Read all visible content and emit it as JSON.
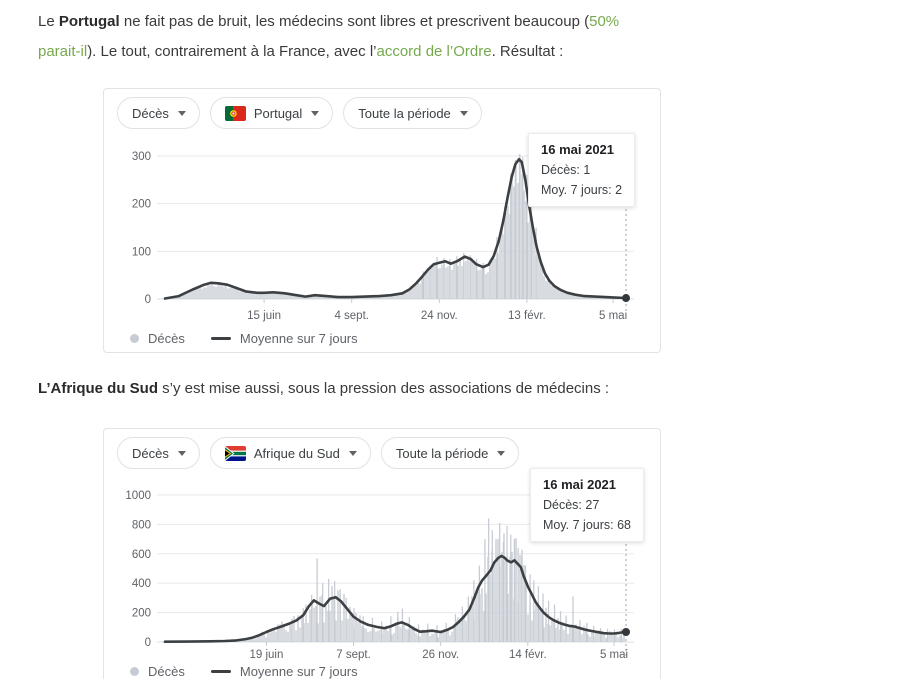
{
  "page": {
    "colors": {
      "link_green": "#76a94e",
      "bar_fill": "#c7ccd4",
      "avg_line": "#3c4043",
      "axis_text": "#5f6368",
      "text": "#3a3a3a"
    },
    "paragraphs": [
      {
        "segments": [
          {
            "t": "Le ",
            "s": "n"
          },
          {
            "t": "Portugal",
            "s": "b"
          },
          {
            "t": " ne fait pas de bruit, les médecins sont libres et prescrivent beaucoup (",
            "s": "n"
          },
          {
            "t": "50%",
            "s": "l"
          },
          {
            "br": true
          },
          {
            "t": "parait-il",
            "s": "l"
          },
          {
            "t": "). Le tout, contrairement à la France, avec l’",
            "s": "n"
          },
          {
            "t": "accord de l’Ordre",
            "s": "l"
          },
          {
            "t": ". Résultat :",
            "s": "n"
          }
        ]
      },
      {
        "segments": [
          {
            "t": "L’Afrique du Sud",
            "s": "b"
          },
          {
            "t": " s’y est mise aussi, sous la pression des associations de médecins :",
            "s": "n"
          }
        ]
      }
    ]
  },
  "chart_data": [
    {
      "type": "area",
      "title": "Décès – Portugal – Toute la période",
      "metric": "Décès",
      "country": "Portugal",
      "period": "Toute la période",
      "controls": [
        {
          "label": "Décès",
          "flag": null,
          "name": "metric-dropdown"
        },
        {
          "label": "Portugal",
          "flag": "portugal-flag",
          "name": "country-dropdown"
        },
        {
          "label": "Toute la période",
          "flag": null,
          "name": "period-dropdown"
        }
      ],
      "ylim": [
        0,
        315
      ],
      "y_ticks": [
        0,
        100,
        200,
        300
      ],
      "x_ticks": [
        {
          "t": 0.215,
          "label": "15 juin"
        },
        {
          "t": 0.405,
          "label": "4 sept."
        },
        {
          "t": 0.595,
          "label": "24 nov."
        },
        {
          "t": 0.785,
          "label": "13 févr."
        },
        {
          "t": 0.972,
          "label": "5 mai"
        }
      ],
      "tooltip": {
        "title": "16 mai 2021",
        "rows": [
          "Décès: 1",
          "Moy. 7 jours: 2"
        ]
      },
      "end_point": {
        "date": "16 mai 2021",
        "value": 2
      },
      "legend": [
        {
          "type": "dot",
          "label": "Décès"
        },
        {
          "type": "line",
          "label": "Moyenne sur 7 jours"
        }
      ],
      "series": [
        {
          "name": "Décès",
          "style": "bars-daily-with-jitter"
        },
        {
          "name": "Moyenne sur 7 jours",
          "style": "line",
          "points": [
            [
              0,
              1
            ],
            [
              0.03,
              6
            ],
            [
              0.06,
              20
            ],
            [
              0.085,
              30
            ],
            [
              0.1,
              34
            ],
            [
              0.115,
              33
            ],
            [
              0.135,
              30
            ],
            [
              0.155,
              23
            ],
            [
              0.175,
              16
            ],
            [
              0.2,
              13
            ],
            [
              0.215,
              13
            ],
            [
              0.235,
              14
            ],
            [
              0.26,
              12
            ],
            [
              0.285,
              8
            ],
            [
              0.305,
              5
            ],
            [
              0.325,
              8
            ],
            [
              0.35,
              6
            ],
            [
              0.375,
              4
            ],
            [
              0.405,
              4
            ],
            [
              0.435,
              5
            ],
            [
              0.465,
              6
            ],
            [
              0.49,
              8
            ],
            [
              0.515,
              12
            ],
            [
              0.53,
              20
            ],
            [
              0.545,
              33
            ],
            [
              0.558,
              47
            ],
            [
              0.571,
              62
            ],
            [
              0.583,
              73
            ],
            [
              0.595,
              76
            ],
            [
              0.608,
              79
            ],
            [
              0.62,
              74
            ],
            [
              0.635,
              80
            ],
            [
              0.65,
              89
            ],
            [
              0.663,
              84
            ],
            [
              0.675,
              73
            ],
            [
              0.69,
              67
            ],
            [
              0.702,
              72
            ],
            [
              0.713,
              90
            ],
            [
              0.724,
              122
            ],
            [
              0.734,
              165
            ],
            [
              0.743,
              212
            ],
            [
              0.752,
              256
            ],
            [
              0.76,
              283
            ],
            [
              0.768,
              293
            ],
            [
              0.774,
              287
            ],
            [
              0.782,
              248
            ],
            [
              0.79,
              195
            ],
            [
              0.798,
              150
            ],
            [
              0.806,
              110
            ],
            [
              0.815,
              78
            ],
            [
              0.824,
              54
            ],
            [
              0.834,
              38
            ],
            [
              0.845,
              27
            ],
            [
              0.858,
              19
            ],
            [
              0.873,
              13
            ],
            [
              0.89,
              9
            ],
            [
              0.91,
              6
            ],
            [
              0.932,
              5
            ],
            [
              0.955,
              4
            ],
            [
              0.976,
              3
            ],
            [
              1,
              2
            ]
          ]
        }
      ],
      "notable_daily_spikes": [
        [
          0.56,
          58
        ],
        [
          0.575,
          70
        ],
        [
          0.59,
          88
        ],
        [
          0.605,
          86
        ],
        [
          0.618,
          84
        ],
        [
          0.633,
          90
        ],
        [
          0.648,
          97
        ],
        [
          0.662,
          92
        ],
        [
          0.676,
          84
        ],
        [
          0.69,
          76
        ],
        [
          0.705,
          82
        ],
        [
          0.72,
          130
        ],
        [
          0.737,
          195
        ],
        [
          0.75,
          262
        ],
        [
          0.76,
          292
        ],
        [
          0.769,
          304
        ],
        [
          0.776,
          298
        ],
        [
          0.785,
          260
        ],
        [
          0.795,
          205
        ],
        [
          0.805,
          150
        ]
      ]
    },
    {
      "type": "area",
      "title": "Décès – Afrique du Sud – Toute la période",
      "metric": "Décès",
      "country": "Afrique du Sud",
      "period": "Toute la période",
      "controls": [
        {
          "label": "Décès",
          "flag": null,
          "name": "metric-dropdown"
        },
        {
          "label": "Afrique du Sud",
          "flag": "south-africa-flag",
          "name": "country-dropdown"
        },
        {
          "label": "Toute la période",
          "flag": null,
          "name": "period-dropdown"
        }
      ],
      "ylim": [
        0,
        1050
      ],
      "y_ticks": [
        0,
        200,
        400,
        600,
        800,
        1000
      ],
      "x_ticks": [
        {
          "t": 0.22,
          "label": "19 juin"
        },
        {
          "t": 0.409,
          "label": "7 sept."
        },
        {
          "t": 0.598,
          "label": "26 nov."
        },
        {
          "t": 0.787,
          "label": "14 févr."
        },
        {
          "t": 0.974,
          "label": "5 mai"
        }
      ],
      "tooltip": {
        "title": "16 mai 2021",
        "rows": [
          "Décès: 27",
          "Moy. 7 jours: 68"
        ]
      },
      "end_point": {
        "date": "16 mai 2021",
        "value": 68
      },
      "legend": [
        {
          "type": "dot",
          "label": "Décès"
        },
        {
          "type": "line",
          "label": "Moyenne sur 7 jours"
        }
      ],
      "series": [
        {
          "name": "Décès",
          "style": "bars-daily-with-jitter"
        },
        {
          "name": "Moyenne sur 7 jours",
          "style": "line",
          "points": [
            [
              0,
              2
            ],
            [
              0.05,
              3
            ],
            [
              0.1,
              5
            ],
            [
              0.13,
              7
            ],
            [
              0.155,
              11
            ],
            [
              0.175,
              20
            ],
            [
              0.19,
              30
            ],
            [
              0.205,
              47
            ],
            [
              0.22,
              68
            ],
            [
              0.235,
              87
            ],
            [
              0.25,
              103
            ],
            [
              0.27,
              126
            ],
            [
              0.285,
              147
            ],
            [
              0.3,
              182
            ],
            [
              0.312,
              243
            ],
            [
              0.323,
              283
            ],
            [
              0.334,
              262
            ],
            [
              0.345,
              244
            ],
            [
              0.358,
              294
            ],
            [
              0.37,
              305
            ],
            [
              0.382,
              276
            ],
            [
              0.395,
              226
            ],
            [
              0.409,
              172
            ],
            [
              0.424,
              140
            ],
            [
              0.441,
              116
            ],
            [
              0.459,
              103
            ],
            [
              0.476,
              94
            ],
            [
              0.491,
              108
            ],
            [
              0.504,
              126
            ],
            [
              0.514,
              133
            ],
            [
              0.527,
              116
            ],
            [
              0.54,
              90
            ],
            [
              0.553,
              70
            ],
            [
              0.566,
              73
            ],
            [
              0.579,
              77
            ],
            [
              0.598,
              68
            ],
            [
              0.612,
              82
            ],
            [
              0.625,
              102
            ],
            [
              0.638,
              138
            ],
            [
              0.649,
              175
            ],
            [
              0.66,
              220
            ],
            [
              0.671,
              300
            ],
            [
              0.679,
              368
            ],
            [
              0.688,
              420
            ],
            [
              0.697,
              452
            ],
            [
              0.706,
              487
            ],
            [
              0.714,
              540
            ],
            [
              0.723,
              572
            ],
            [
              0.73,
              585
            ],
            [
              0.737,
              572
            ],
            [
              0.743,
              553
            ],
            [
              0.751,
              542
            ],
            [
              0.758,
              556
            ],
            [
              0.765,
              532
            ],
            [
              0.772,
              508
            ],
            [
              0.778,
              448
            ],
            [
              0.787,
              378
            ],
            [
              0.796,
              322
            ],
            [
              0.804,
              272
            ],
            [
              0.813,
              232
            ],
            [
              0.822,
              198
            ],
            [
              0.833,
              168
            ],
            [
              0.843,
              148
            ],
            [
              0.854,
              132
            ],
            [
              0.865,
              120
            ],
            [
              0.876,
              110
            ],
            [
              0.887,
              106
            ],
            [
              0.898,
              96
            ],
            [
              0.909,
              86
            ],
            [
              0.92,
              78
            ],
            [
              0.93,
              72
            ],
            [
              0.941,
              66
            ],
            [
              0.952,
              60
            ],
            [
              0.963,
              58
            ],
            [
              0.974,
              58
            ],
            [
              0.985,
              62
            ],
            [
              0.996,
              68
            ]
          ]
        }
      ],
      "notable_daily_spikes": [
        [
          0.245,
          118
        ],
        [
          0.275,
          150
        ],
        [
          0.3,
          230
        ],
        [
          0.318,
          320
        ],
        [
          0.33,
          570
        ],
        [
          0.342,
          400
        ],
        [
          0.355,
          430
        ],
        [
          0.368,
          415
        ],
        [
          0.38,
          360
        ],
        [
          0.393,
          300
        ],
        [
          0.41,
          230
        ],
        [
          0.43,
          175
        ],
        [
          0.45,
          165
        ],
        [
          0.47,
          140
        ],
        [
          0.49,
          175
        ],
        [
          0.505,
          205
        ],
        [
          0.515,
          228
        ],
        [
          0.53,
          170
        ],
        [
          0.55,
          120
        ],
        [
          0.57,
          125
        ],
        [
          0.59,
          115
        ],
        [
          0.61,
          130
        ],
        [
          0.63,
          190
        ],
        [
          0.645,
          240
        ],
        [
          0.658,
          310
        ],
        [
          0.67,
          420
        ],
        [
          0.682,
          520
        ],
        [
          0.694,
          700
        ],
        [
          0.702,
          840
        ],
        [
          0.71,
          760
        ],
        [
          0.718,
          700
        ],
        [
          0.726,
          810
        ],
        [
          0.734,
          680
        ],
        [
          0.742,
          790
        ],
        [
          0.75,
          730
        ],
        [
          0.758,
          700
        ],
        [
          0.766,
          640
        ],
        [
          0.774,
          580
        ],
        [
          0.782,
          520
        ],
        [
          0.792,
          460
        ],
        [
          0.8,
          420
        ],
        [
          0.81,
          380
        ],
        [
          0.82,
          330
        ],
        [
          0.832,
          280
        ],
        [
          0.845,
          255
        ],
        [
          0.858,
          210
        ],
        [
          0.87,
          180
        ],
        [
          0.885,
          310
        ],
        [
          0.9,
          150
        ],
        [
          0.915,
          130
        ],
        [
          0.93,
          110
        ],
        [
          0.945,
          95
        ],
        [
          0.96,
          90
        ],
        [
          0.975,
          85
        ],
        [
          0.99,
          90
        ]
      ]
    }
  ]
}
